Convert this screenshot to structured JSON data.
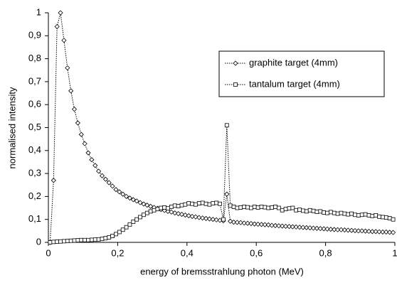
{
  "chart_data": {
    "type": "line",
    "x_label": "energy of bremsstrahlung photon (MeV)",
    "y_label": "normalised intensity",
    "x": [
      0.005,
      0.015,
      0.025,
      0.035,
      0.045,
      0.055,
      0.065,
      0.075,
      0.085,
      0.095,
      0.105,
      0.115,
      0.125,
      0.135,
      0.145,
      0.155,
      0.165,
      0.175,
      0.185,
      0.195,
      0.205,
      0.215,
      0.225,
      0.235,
      0.245,
      0.255,
      0.265,
      0.275,
      0.285,
      0.295,
      0.305,
      0.315,
      0.325,
      0.335,
      0.345,
      0.355,
      0.365,
      0.375,
      0.385,
      0.395,
      0.405,
      0.415,
      0.425,
      0.435,
      0.445,
      0.455,
      0.465,
      0.475,
      0.485,
      0.495,
      0.505,
      0.515,
      0.525,
      0.535,
      0.545,
      0.555,
      0.565,
      0.575,
      0.585,
      0.595,
      0.605,
      0.615,
      0.625,
      0.635,
      0.645,
      0.655,
      0.665,
      0.675,
      0.685,
      0.695,
      0.705,
      0.715,
      0.725,
      0.735,
      0.745,
      0.755,
      0.765,
      0.775,
      0.785,
      0.795,
      0.805,
      0.815,
      0.825,
      0.835,
      0.845,
      0.855,
      0.865,
      0.875,
      0.885,
      0.895,
      0.905,
      0.915,
      0.925,
      0.935,
      0.945,
      0.955,
      0.965,
      0.975,
      0.985,
      0.995
    ],
    "series": [
      {
        "name": "graphite target (4mm)",
        "color": "#000000",
        "marker": "diamond",
        "values": [
          0,
          0.27,
          0.94,
          1,
          0.88,
          0.76,
          0.66,
          0.58,
          0.52,
          0.47,
          0.43,
          0.39,
          0.36,
          0.335,
          0.31,
          0.29,
          0.275,
          0.26,
          0.245,
          0.23,
          0.22,
          0.21,
          0.2,
          0.193,
          0.186,
          0.18,
          0.173,
          0.167,
          0.162,
          0.157,
          0.152,
          0.148,
          0.143,
          0.139,
          0.135,
          0.132,
          0.128,
          0.125,
          0.122,
          0.119,
          0.116,
          0.113,
          0.111,
          0.108,
          0.106,
          0.104,
          0.102,
          0.1,
          0.098,
          0.096,
          0.094,
          0.21,
          0.092,
          0.088,
          0.087,
          0.086,
          0.084,
          0.083,
          0.082,
          0.08,
          0.079,
          0.078,
          0.077,
          0.076,
          0.074,
          0.073,
          0.072,
          0.071,
          0.07,
          0.069,
          0.068,
          0.067,
          0.066,
          0.065,
          0.064,
          0.063,
          0.062,
          0.061,
          0.06,
          0.059,
          0.058,
          0.057,
          0.056,
          0.055,
          0.055,
          0.054,
          0.053,
          0.052,
          0.051,
          0.05,
          0.05,
          0.049,
          0.048,
          0.047,
          0.047,
          0.046,
          0.045,
          0.045,
          0.044,
          0.043
        ]
      },
      {
        "name": "tantalum target (4mm)",
        "color": "#000000",
        "marker": "square",
        "values": [
          0,
          0.002,
          0.003,
          0.004,
          0.005,
          0.006,
          0.007,
          0.008,
          0.009,
          0.01,
          0.01,
          0.01,
          0.011,
          0.012,
          0.013,
          0.015,
          0.018,
          0.022,
          0.028,
          0.036,
          0.045,
          0.055,
          0.066,
          0.078,
          0.09,
          0.1,
          0.11,
          0.12,
          0.128,
          0.135,
          0.14,
          0.145,
          0.15,
          0.152,
          0.148,
          0.155,
          0.16,
          0.158,
          0.162,
          0.165,
          0.17,
          0.168,
          0.165,
          0.17,
          0.172,
          0.168,
          0.165,
          0.17,
          0.172,
          0.168,
          0.1,
          0.51,
          0.16,
          0.155,
          0.15,
          0.152,
          0.155,
          0.153,
          0.15,
          0.155,
          0.152,
          0.155,
          0.153,
          0.15,
          0.152,
          0.155,
          0.15,
          0.14,
          0.145,
          0.148,
          0.15,
          0.14,
          0.142,
          0.138,
          0.135,
          0.14,
          0.137,
          0.133,
          0.135,
          0.13,
          0.128,
          0.132,
          0.128,
          0.125,
          0.128,
          0.125,
          0.122,
          0.125,
          0.12,
          0.118,
          0.12,
          0.122,
          0.118,
          0.115,
          0.118,
          0.112,
          0.11,
          0.108,
          0.105,
          0.1
        ]
      }
    ],
    "xlim": [
      0,
      1
    ],
    "xticks": [
      0,
      {
        "value": 0.2,
        "label": "0,2"
      },
      {
        "value": 0.4,
        "label": "0,4"
      },
      {
        "value": 0.6,
        "label": "0,6"
      },
      {
        "value": 0.8,
        "label": "0,8"
      },
      1
    ],
    "ylim": [
      0,
      1
    ],
    "yticks": [
      0,
      {
        "value": 0.1,
        "label": "0,1"
      },
      {
        "value": 0.2,
        "label": "0,2"
      },
      {
        "value": 0.3,
        "label": "0,3"
      },
      {
        "value": 0.4,
        "label": "0,4"
      },
      {
        "value": 0.5,
        "label": "0,5"
      },
      {
        "value": 0.6,
        "label": "0,6"
      },
      {
        "value": 0.7,
        "label": "0,7"
      },
      {
        "value": 0.8,
        "label": "0,8"
      },
      {
        "value": 0.9,
        "label": "0,9"
      },
      1
    ],
    "grid": false,
    "legend": "upper right"
  }
}
